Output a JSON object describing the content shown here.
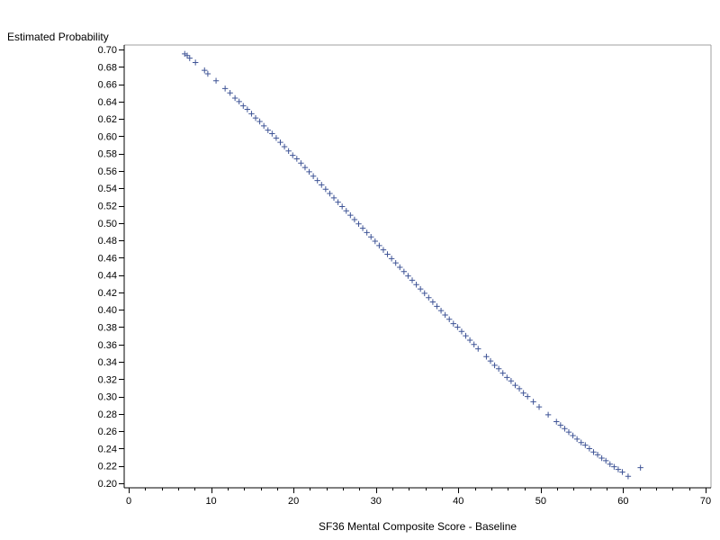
{
  "chart_data": {
    "type": "scatter",
    "title": "",
    "xlabel": "SF36 Mental Composite Score - Baseline",
    "ylabel": "Estimated Probability",
    "xlim": [
      0,
      70
    ],
    "ylim": [
      0.2,
      0.7
    ],
    "x_ticks": [
      0,
      10,
      20,
      30,
      40,
      50,
      60,
      70
    ],
    "x_tick_labels": [
      "0",
      "10",
      "20",
      "30",
      "40",
      "50",
      "60",
      "70"
    ],
    "x_minor_step": 2,
    "y_ticks": [
      0.2,
      0.22,
      0.24,
      0.26,
      0.28,
      0.3,
      0.32,
      0.34,
      0.36,
      0.38,
      0.4,
      0.42,
      0.44,
      0.46,
      0.48,
      0.5,
      0.52,
      0.54,
      0.56,
      0.58,
      0.6,
      0.62,
      0.64,
      0.66,
      0.68,
      0.7
    ],
    "y_tick_labels": [
      "0.20",
      "0.22",
      "0.24",
      "0.26",
      "0.28",
      "0.30",
      "0.32",
      "0.34",
      "0.36",
      "0.38",
      "0.40",
      "0.42",
      "0.44",
      "0.46",
      "0.48",
      "0.50",
      "0.52",
      "0.54",
      "0.56",
      "0.58",
      "0.60",
      "0.62",
      "0.64",
      "0.66",
      "0.68",
      "0.70"
    ],
    "grid": false,
    "marker": "plus",
    "marker_color": "#3f5496",
    "axis_color": "#000000",
    "frame_color": "#a0a0a0",
    "series": [
      {
        "x": [
          6.8,
          7.1,
          7.4,
          8.1,
          9.2,
          9.6,
          10.6,
          11.7,
          12.3,
          12.9,
          13.4,
          13.9,
          14.4,
          14.9,
          15.4,
          15.9,
          16.4,
          16.9,
          17.4,
          17.9,
          18.4,
          18.9,
          19.4,
          19.9,
          20.4,
          20.9,
          21.4,
          21.9,
          22.4,
          22.9,
          23.4,
          23.9,
          24.4,
          24.9,
          25.4,
          25.9,
          26.4,
          26.9,
          27.4,
          27.9,
          28.4,
          28.9,
          29.4,
          29.9,
          30.4,
          30.9,
          31.4,
          31.9,
          32.4,
          32.9,
          33.4,
          33.9,
          34.4,
          34.9,
          35.4,
          35.9,
          36.4,
          36.9,
          37.4,
          37.9,
          38.4,
          38.9,
          39.4,
          39.9,
          40.4,
          40.9,
          41.4,
          41.9,
          42.4,
          43.4,
          43.9,
          44.4,
          44.9,
          45.4,
          45.9,
          46.4,
          46.9,
          47.4,
          47.9,
          48.4,
          49.1,
          49.8,
          50.9,
          51.9,
          52.4,
          52.9,
          53.4,
          53.9,
          54.4,
          54.9,
          55.4,
          55.9,
          56.4,
          56.9,
          57.4,
          57.9,
          58.4,
          58.9,
          59.4,
          59.9,
          60.6,
          62.1
        ],
        "y": [
          0.695,
          0.693,
          0.69,
          0.685,
          0.676,
          0.672,
          0.664,
          0.655,
          0.65,
          0.644,
          0.64,
          0.635,
          0.631,
          0.626,
          0.621,
          0.617,
          0.612,
          0.607,
          0.603,
          0.598,
          0.593,
          0.588,
          0.583,
          0.578,
          0.574,
          0.569,
          0.564,
          0.559,
          0.554,
          0.549,
          0.544,
          0.539,
          0.534,
          0.529,
          0.524,
          0.519,
          0.514,
          0.509,
          0.504,
          0.499,
          0.494,
          0.489,
          0.484,
          0.479,
          0.474,
          0.469,
          0.464,
          0.459,
          0.454,
          0.449,
          0.444,
          0.439,
          0.434,
          0.429,
          0.424,
          0.419,
          0.414,
          0.409,
          0.404,
          0.399,
          0.394,
          0.389,
          0.384,
          0.38,
          0.375,
          0.37,
          0.365,
          0.36,
          0.355,
          0.346,
          0.341,
          0.336,
          0.332,
          0.327,
          0.322,
          0.318,
          0.313,
          0.309,
          0.304,
          0.3,
          0.294,
          0.288,
          0.279,
          0.271,
          0.267,
          0.263,
          0.259,
          0.255,
          0.251,
          0.247,
          0.244,
          0.24,
          0.236,
          0.233,
          0.229,
          0.226,
          0.222,
          0.219,
          0.216,
          0.213,
          0.208,
          0.218
        ]
      }
    ]
  }
}
